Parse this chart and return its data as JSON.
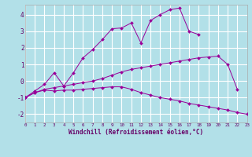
{
  "background_color": "#b2e0e8",
  "grid_color": "#c8eaee",
  "line_color": "#990099",
  "xlabel": "Windchill (Refroidissement éolien,°C)",
  "xlim": [
    0,
    23
  ],
  "ylim": [
    -2.5,
    4.6
  ],
  "xticks": [
    0,
    1,
    2,
    3,
    4,
    5,
    6,
    7,
    8,
    9,
    10,
    11,
    12,
    13,
    14,
    15,
    16,
    17,
    18,
    19,
    20,
    21,
    22,
    23
  ],
  "yticks": [
    -2,
    -1,
    0,
    1,
    2,
    3,
    4
  ],
  "series1_x": [
    0,
    1,
    2,
    3,
    4,
    5,
    6,
    7,
    8,
    9,
    10,
    11,
    12,
    13,
    14,
    15,
    16,
    17,
    18
  ],
  "series1_y": [
    -1.0,
    -0.6,
    -0.2,
    0.5,
    -0.3,
    0.5,
    1.4,
    1.9,
    2.5,
    3.15,
    3.2,
    3.5,
    2.3,
    3.65,
    4.0,
    4.3,
    4.4,
    3.0,
    2.8
  ],
  "series2_x": [
    0,
    1,
    2,
    3,
    4,
    5,
    6,
    7,
    8,
    9,
    10,
    11,
    12,
    13,
    14,
    15,
    16,
    17,
    18,
    19,
    20,
    21,
    22
  ],
  "series2_y": [
    -1.0,
    -0.7,
    -0.5,
    -0.4,
    -0.3,
    -0.2,
    -0.1,
    0.0,
    0.15,
    0.35,
    0.55,
    0.7,
    0.8,
    0.9,
    1.0,
    1.1,
    1.2,
    1.3,
    1.4,
    1.45,
    1.5,
    1.0,
    -0.5
  ],
  "series3_x": [
    0,
    1,
    2,
    3,
    4,
    5,
    6,
    7,
    8,
    9,
    10,
    11,
    12,
    13,
    14,
    15,
    16,
    17,
    18,
    19,
    20,
    21,
    22,
    23
  ],
  "series3_y": [
    -1.0,
    -0.7,
    -0.55,
    -0.6,
    -0.55,
    -0.55,
    -0.5,
    -0.45,
    -0.4,
    -0.35,
    -0.35,
    -0.5,
    -0.7,
    -0.85,
    -1.0,
    -1.1,
    -1.2,
    -1.35,
    -1.45,
    -1.55,
    -1.65,
    -1.75,
    -1.9,
    -2.0
  ]
}
